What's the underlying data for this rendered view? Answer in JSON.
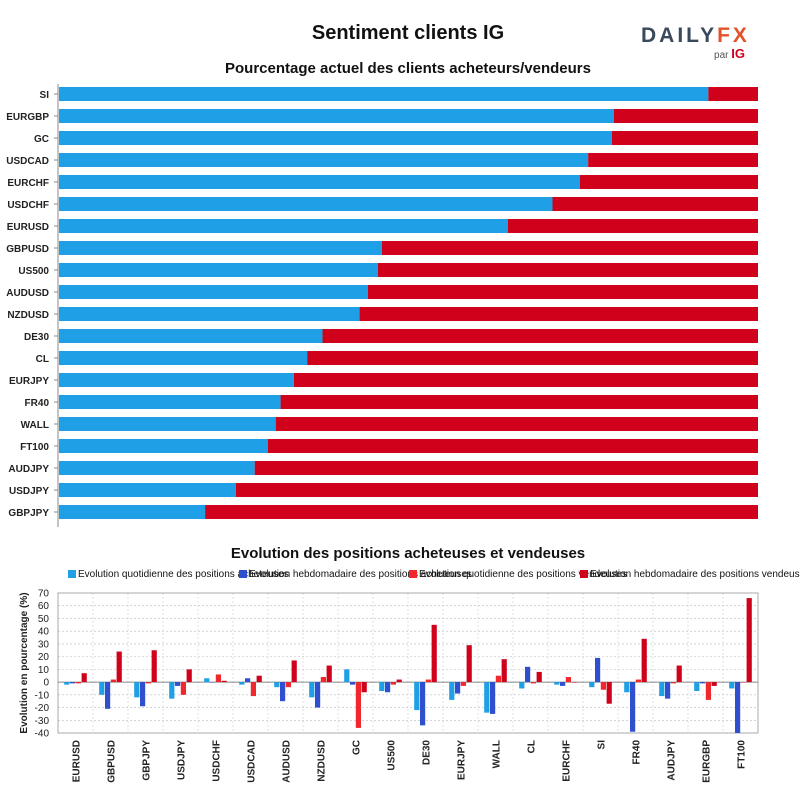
{
  "title": "Sentiment clients IG",
  "logo": {
    "brand_left": "DAILY",
    "brand_right": "FX",
    "sub_par": "par",
    "sub_ig": "IG"
  },
  "colors": {
    "long": "#1e9fe6",
    "short": "#d0021b",
    "weekly_long": "#2f4fcf",
    "daily_short": "#f0282e"
  },
  "chart_data": [
    {
      "type": "bar",
      "orientation": "horizontal",
      "stacked": true,
      "title": "Pourcentage actuel des clients acheteurs/vendeurs",
      "xlim": [
        0,
        100
      ],
      "categories": [
        "SI",
        "EURGBP",
        "GC",
        "USDCAD",
        "EURCHF",
        "USDCHF",
        "EURUSD",
        "GBPUSD",
        "US500",
        "AUDUSD",
        "NZDUSD",
        "DE30",
        "CL",
        "EURJPY",
        "FR40",
        "WALL",
        "FT100",
        "AUDJPY",
        "USDJPY",
        "GBPJPY"
      ],
      "series": [
        {
          "values": [
            92.9,
            79.4,
            79.1,
            75.7,
            74.5,
            70.6,
            64.2,
            46.2,
            45.6,
            44.2,
            43.0,
            37.7,
            35.5,
            33.6,
            31.7,
            31.0,
            29.9,
            28.0,
            25.3,
            20.9
          ]
        },
        {
          "values": [
            7.1,
            20.6,
            20.9,
            24.3,
            25.5,
            29.4,
            35.8,
            53.8,
            54.4,
            55.8,
            57.0,
            62.3,
            64.5,
            66.4,
            68.3,
            69.0,
            70.1,
            72.0,
            74.7,
            79.1
          ]
        }
      ]
    },
    {
      "type": "bar",
      "title": "Evolution des positions acheteuses et vendeuses",
      "ylabel": "Evolution en pourcentage (%)",
      "ylim": [
        -40,
        70
      ],
      "yticks": [
        -40,
        -30,
        -20,
        -10,
        0,
        10,
        20,
        30,
        40,
        50,
        60,
        70
      ],
      "legend_position": "top",
      "categories": [
        "EURUSD",
        "GBPUSD",
        "GBPJPY",
        "USDJPY",
        "USDCHF",
        "USDCAD",
        "AUDUSD",
        "NZDUSD",
        "GC",
        "US500",
        "DE30",
        "EURJPY",
        "WALL",
        "CL",
        "EURCHF",
        "SI",
        "FR40",
        "AUDJPY",
        "EURGBP",
        "FT100"
      ],
      "series": [
        {
          "name": "Evolution quotidienne des positions acheteuses",
          "values": [
            -2,
            -10,
            -12,
            -13,
            3,
            -2,
            -4,
            -12,
            10,
            -7,
            -22,
            -14,
            -24,
            -5,
            -2,
            -4,
            -8,
            -11,
            -7,
            -5
          ]
        },
        {
          "name": "Evolution hebdomadaire des positions acheteuses",
          "values": [
            -1,
            -21,
            -19,
            -3,
            0,
            3,
            -15,
            -20,
            -2,
            -8,
            -34,
            -9,
            -25,
            12,
            -3,
            19,
            -39,
            -13,
            -1,
            -40
          ]
        },
        {
          "name": "Evolution quotidienne des positions vendeuses",
          "values": [
            -1,
            2,
            -1,
            -10,
            6,
            -11,
            -4,
            4,
            -36,
            -2,
            2,
            -3,
            5,
            -1,
            4,
            -6,
            2,
            -1,
            -14,
            0
          ]
        },
        {
          "name": "Evolution hebdomadaire des positions vendeuses",
          "values": [
            7,
            24,
            25,
            10,
            1,
            5,
            17,
            13,
            -8,
            2,
            45,
            29,
            18,
            8,
            0,
            -17,
            34,
            13,
            -3,
            66
          ]
        }
      ]
    }
  ]
}
